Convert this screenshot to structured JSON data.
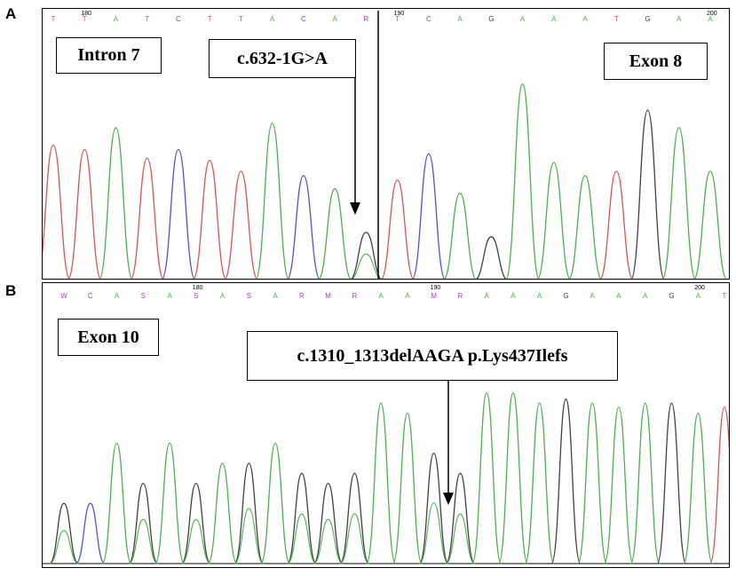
{
  "panels": [
    {
      "letter": "A",
      "bases": [
        "T",
        "T",
        "A",
        "T",
        "C",
        "T",
        "T",
        "A",
        "C",
        "A",
        "R",
        "T",
        "C",
        "A",
        "G",
        "A",
        "A",
        "A",
        "T",
        "G",
        "A",
        "A"
      ],
      "ticks": [
        {
          "index": 1,
          "text": "180"
        },
        {
          "index": 11,
          "text": "190"
        },
        {
          "index": 21,
          "text": "200"
        }
      ],
      "boxes": {
        "intron": "Intron 7",
        "mutation": "c.632-1G>A",
        "exon": "Exon 8"
      },
      "peak_heights": [
        0.62,
        0.6,
        0.7,
        0.56,
        0.6,
        0.55,
        0.5,
        0.72,
        0.48,
        0.42,
        0.22,
        0.46,
        0.58,
        0.4,
        0.2,
        0.9,
        0.54,
        0.48,
        0.5,
        0.78,
        0.7,
        0.5
      ]
    },
    {
      "letter": "B",
      "bases": [
        "W",
        "C",
        "A",
        "S",
        "A",
        "S",
        "A",
        "S",
        "A",
        "R",
        "M",
        "R",
        "A",
        "A",
        "M",
        "R",
        "A",
        "A",
        "A",
        "G",
        "A",
        "A",
        "A",
        "G",
        "A",
        "T"
      ],
      "ticks": [
        {
          "index": 5,
          "text": "180"
        },
        {
          "index": 14,
          "text": "190"
        },
        {
          "index": 24,
          "text": "200"
        }
      ],
      "boxes": {
        "exon": "Exon 10",
        "mutation": "c.1310_1313delAAGA p.Lys437Ilefs"
      },
      "peak_heights": [
        0.3,
        0.3,
        0.6,
        0.4,
        0.6,
        0.4,
        0.5,
        0.5,
        0.6,
        0.45,
        0.4,
        0.45,
        0.8,
        0.75,
        0.55,
        0.45,
        0.85,
        0.85,
        0.8,
        0.82,
        0.8,
        0.78,
        0.8,
        0.8,
        0.75,
        0.78
      ]
    }
  ],
  "colors": {
    "A": "#4caf50",
    "C": "#5050e0",
    "G": "#404040",
    "T": "#e05050",
    "ambiguous": "#b040c0",
    "arrow": "#000000"
  }
}
